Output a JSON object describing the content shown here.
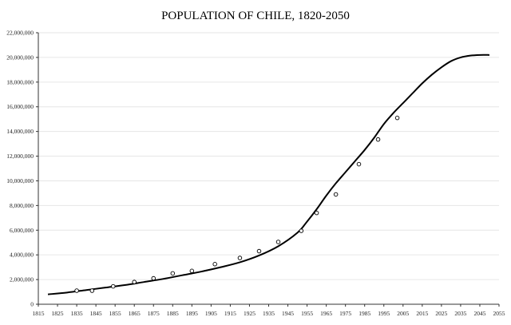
{
  "chart_data": {
    "type": "scatter",
    "title": "POPULATION OF CHILE, 1820-2050",
    "xlabel": "",
    "ylabel": "",
    "xlim": [
      1815,
      2055
    ],
    "ylim": [
      0,
      22000000
    ],
    "grid": true,
    "x_ticks": [
      1815,
      1825,
      1835,
      1845,
      1855,
      1865,
      1875,
      1885,
      1895,
      1905,
      1915,
      1925,
      1935,
      1945,
      1955,
      1965,
      1975,
      1985,
      1995,
      2005,
      2015,
      2025,
      2035,
      2045,
      2055
    ],
    "y_ticks": [
      0,
      2000000,
      4000000,
      6000000,
      8000000,
      10000000,
      12000000,
      14000000,
      16000000,
      18000000,
      20000000,
      22000000
    ],
    "x_tick_labels": [
      "1815",
      "1825",
      "1835",
      "1845",
      "1855",
      "1865",
      "1875",
      "1885",
      "1895",
      "1905",
      "1915",
      "1925",
      "1935",
      "1945",
      "1955",
      "1965",
      "1975",
      "1985",
      "1995",
      "2005",
      "2015",
      "2025",
      "2035",
      "2045",
      "2055"
    ],
    "y_tick_labels": [
      "0",
      "2,000,000",
      "4,000,000",
      "6,000,000",
      "8,000,000",
      "10,000,000",
      "12,000,000",
      "14,000,000",
      "16,000,000",
      "18,000,000",
      "20,000,000",
      "22,000,000"
    ],
    "series": [
      {
        "style": "line",
        "x": [
          1820,
          1830,
          1840,
          1850,
          1860,
          1870,
          1880,
          1890,
          1900,
          1910,
          1920,
          1930,
          1940,
          1950,
          1955,
          1960,
          1965,
          1970,
          1975,
          1980,
          1985,
          1990,
          1995,
          2000,
          2005,
          2010,
          2015,
          2020,
          2025,
          2030,
          2035,
          2040,
          2045,
          2050
        ],
        "y": [
          800000,
          950000,
          1150000,
          1350000,
          1550000,
          1800000,
          2050000,
          2350000,
          2650000,
          3000000,
          3400000,
          3950000,
          4700000,
          5800000,
          6700000,
          7700000,
          8800000,
          9800000,
          10700000,
          11600000,
          12500000,
          13500000,
          14600000,
          15500000,
          16300000,
          17100000,
          17900000,
          18600000,
          19200000,
          19700000,
          20000000,
          20150000,
          20200000,
          20200000
        ]
      },
      {
        "style": "markers",
        "x": [
          1835,
          1843,
          1854,
          1865,
          1875,
          1885,
          1895,
          1907,
          1920,
          1930,
          1940,
          1952,
          1960,
          1970,
          1982,
          1992,
          2002
        ],
        "y": [
          1100000,
          1100000,
          1450000,
          1800000,
          2100000,
          2500000,
          2700000,
          3250000,
          3750000,
          4300000,
          5050000,
          5950000,
          7400000,
          8900000,
          11350000,
          13350000,
          15100000
        ]
      }
    ]
  }
}
